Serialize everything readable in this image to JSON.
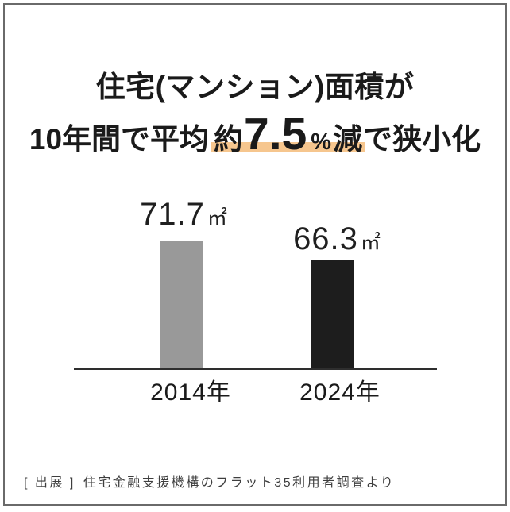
{
  "title": {
    "line1": "住宅(マンション)面積が",
    "line2": {
      "prefix": "10年間で平均",
      "highlight": {
        "approx": "約",
        "value": "7.5",
        "percent": "%",
        "decrease": "減"
      },
      "suffix": "で狭小化"
    }
  },
  "chart_data": {
    "type": "bar",
    "title": "住宅(マンション)面積が10年間で平均約7.5%減で狭小化",
    "categories": [
      "2014年",
      "2024年"
    ],
    "values": [
      71.7,
      66.3
    ],
    "unit": "㎡",
    "series_name": "住宅(マンション)面積",
    "decrease_percent_label": "約7.5%減",
    "bar_colors": [
      "#999999",
      "#1d1d1d"
    ],
    "grid": false,
    "legend": false,
    "baseline_axis_only": true
  },
  "footer": {
    "label": "[ 出展 ]",
    "source": "住宅金融支援機構のフラット35利用者調査より"
  },
  "colors": {
    "text": "#1a1a1a",
    "highlight_underline": "#f6c68e",
    "bar_2014": "#999999",
    "bar_2024": "#1d1d1d",
    "axis": "#2e2e2e",
    "frame_border": "#6a6a6a",
    "footer_text": "#3e3e3e",
    "background": "#ffffff"
  }
}
